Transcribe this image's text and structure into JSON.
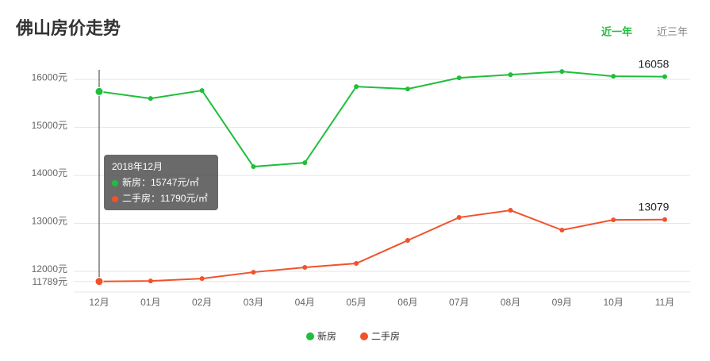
{
  "chart_data": {
    "type": "line",
    "title": "佛山房价走势",
    "tabs": [
      "近一年",
      "近三年"
    ],
    "categories": [
      "12月",
      "01月",
      "02月",
      "03月",
      "04月",
      "05月",
      "06月",
      "07月",
      "08月",
      "09月",
      "10月",
      "11月"
    ],
    "series": [
      {
        "name": "新房",
        "color": "#1fbe3c",
        "values": [
          15747,
          15603,
          15769,
          14182,
          14264,
          15851,
          15802,
          16033,
          16099,
          16165,
          16066,
          16058
        ]
      },
      {
        "name": "二手房",
        "color": "#f0522b",
        "values": [
          11790,
          11800,
          11850,
          11983,
          12083,
          12165,
          12645,
          13124,
          13273,
          12860,
          13074,
          13079
        ]
      }
    ],
    "ylim": [
      11789,
      16200
    ],
    "yticks": [
      {
        "value": 11789,
        "label": "11789元"
      },
      {
        "value": 12000,
        "label": "12000元"
      },
      {
        "value": 13000,
        "label": "13000元"
      },
      {
        "value": 14000,
        "label": "14000元"
      },
      {
        "value": 15000,
        "label": "15000元"
      },
      {
        "value": 16000,
        "label": "16000元"
      }
    ],
    "grid": true,
    "legend": "bottom",
    "tooltip": {
      "title": "2018年12月",
      "items": [
        "新房：15747元/㎡",
        "二手房：11790元/㎡"
      ]
    }
  }
}
